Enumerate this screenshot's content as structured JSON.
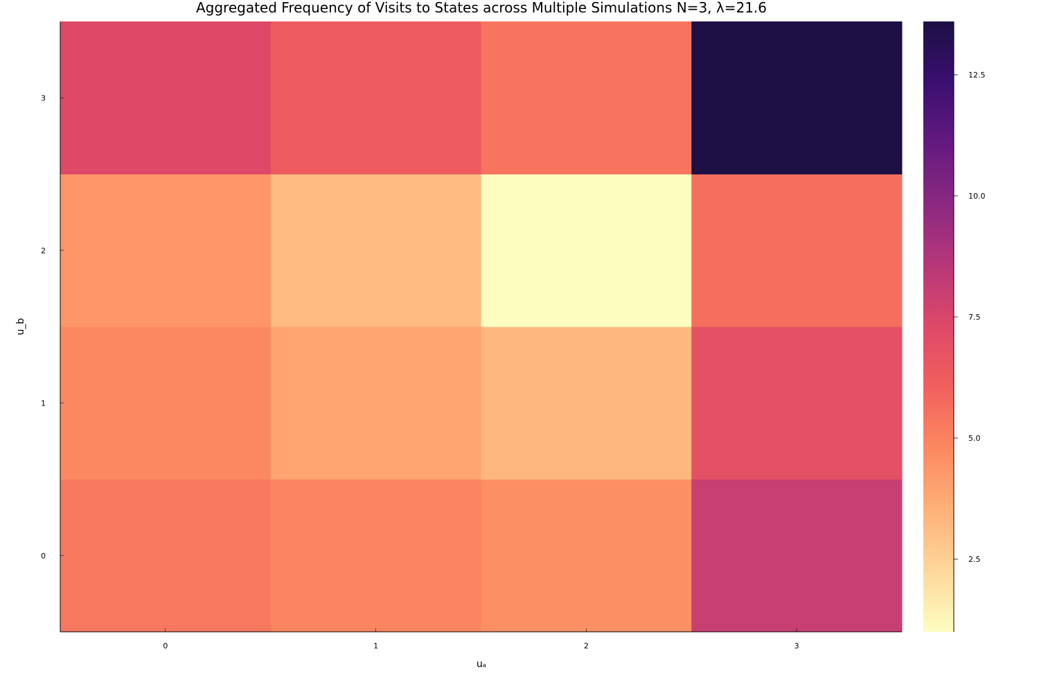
{
  "chart_data": {
    "type": "heatmap",
    "title": "Aggregated Frequency of Visits to States across Multiple Simulations N=3, λ=21.6",
    "xlabel": "uₐ",
    "ylabel": "u_b",
    "x_categories": [
      "0",
      "1",
      "2",
      "3"
    ],
    "y_categories": [
      "0",
      "1",
      "2",
      "3"
    ],
    "values": [
      [
        5.3,
        4.9,
        4.6,
        8.0
      ],
      [
        4.8,
        3.9,
        3.3,
        6.9
      ],
      [
        4.4,
        3.2,
        1.0,
        5.6
      ],
      [
        7.3,
        6.3,
        5.4,
        13.6
      ]
    ],
    "colorbar": {
      "range": [
        1.0,
        13.6
      ],
      "ticks": [
        "2.5",
        "5.0",
        "7.5",
        "10.0",
        "12.5"
      ],
      "tick_values": [
        2.5,
        5.0,
        7.5,
        10.0,
        12.5
      ],
      "colormap": "magma-reversed"
    },
    "grid": false
  }
}
